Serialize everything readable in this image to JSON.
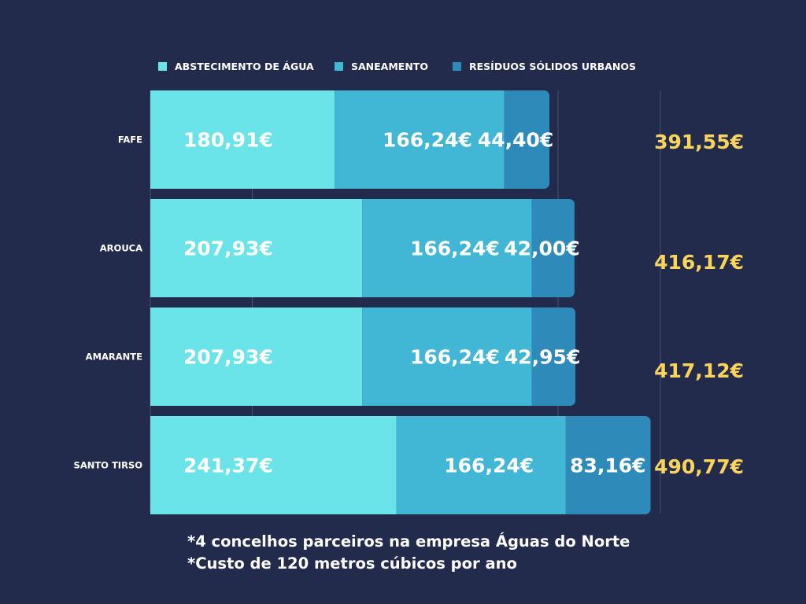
{
  "chart_data": {
    "type": "bar",
    "orientation": "horizontal",
    "stacked": true,
    "categories": [
      "FAFE",
      "AROUCA",
      "AMARANTE",
      "SANTO TIRSO"
    ],
    "series": [
      {
        "name": "ABSTECIMENTO DE ÁGUA",
        "color": "#6ae4e9",
        "values": [
          180.91,
          207.93,
          207.93,
          241.37
        ],
        "labels": [
          "180,91€",
          "207,93€",
          "207,93€",
          "241,37€"
        ]
      },
      {
        "name": "SANEAMENTO",
        "color": "#42b6d5",
        "values": [
          166.24,
          166.24,
          166.24,
          166.24
        ],
        "labels": [
          "166,24€",
          "166,24€",
          "166,24€",
          "166,24€"
        ]
      },
      {
        "name": "RESÍDUOS SÓLIDOS URBANOS",
        "color": "#2e8ab8",
        "values": [
          44.4,
          42.0,
          42.95,
          83.16
        ],
        "labels": [
          "44,40€",
          "42,00€",
          "42,95€",
          "83,16€"
        ]
      }
    ],
    "totals": [
      391.55,
      416.17,
      417.12,
      490.77
    ],
    "total_labels": [
      "391,55€",
      "416,17€",
      "417,12€",
      "490,77€"
    ],
    "total_color": "#fbd55a",
    "xlim": [
      0,
      500
    ],
    "grid": true,
    "legend": "top"
  },
  "notes": [
    "*4 concelhos parceiros na empresa Águas do Norte",
    "*Custo de 120 metros cúbicos por ano"
  ]
}
